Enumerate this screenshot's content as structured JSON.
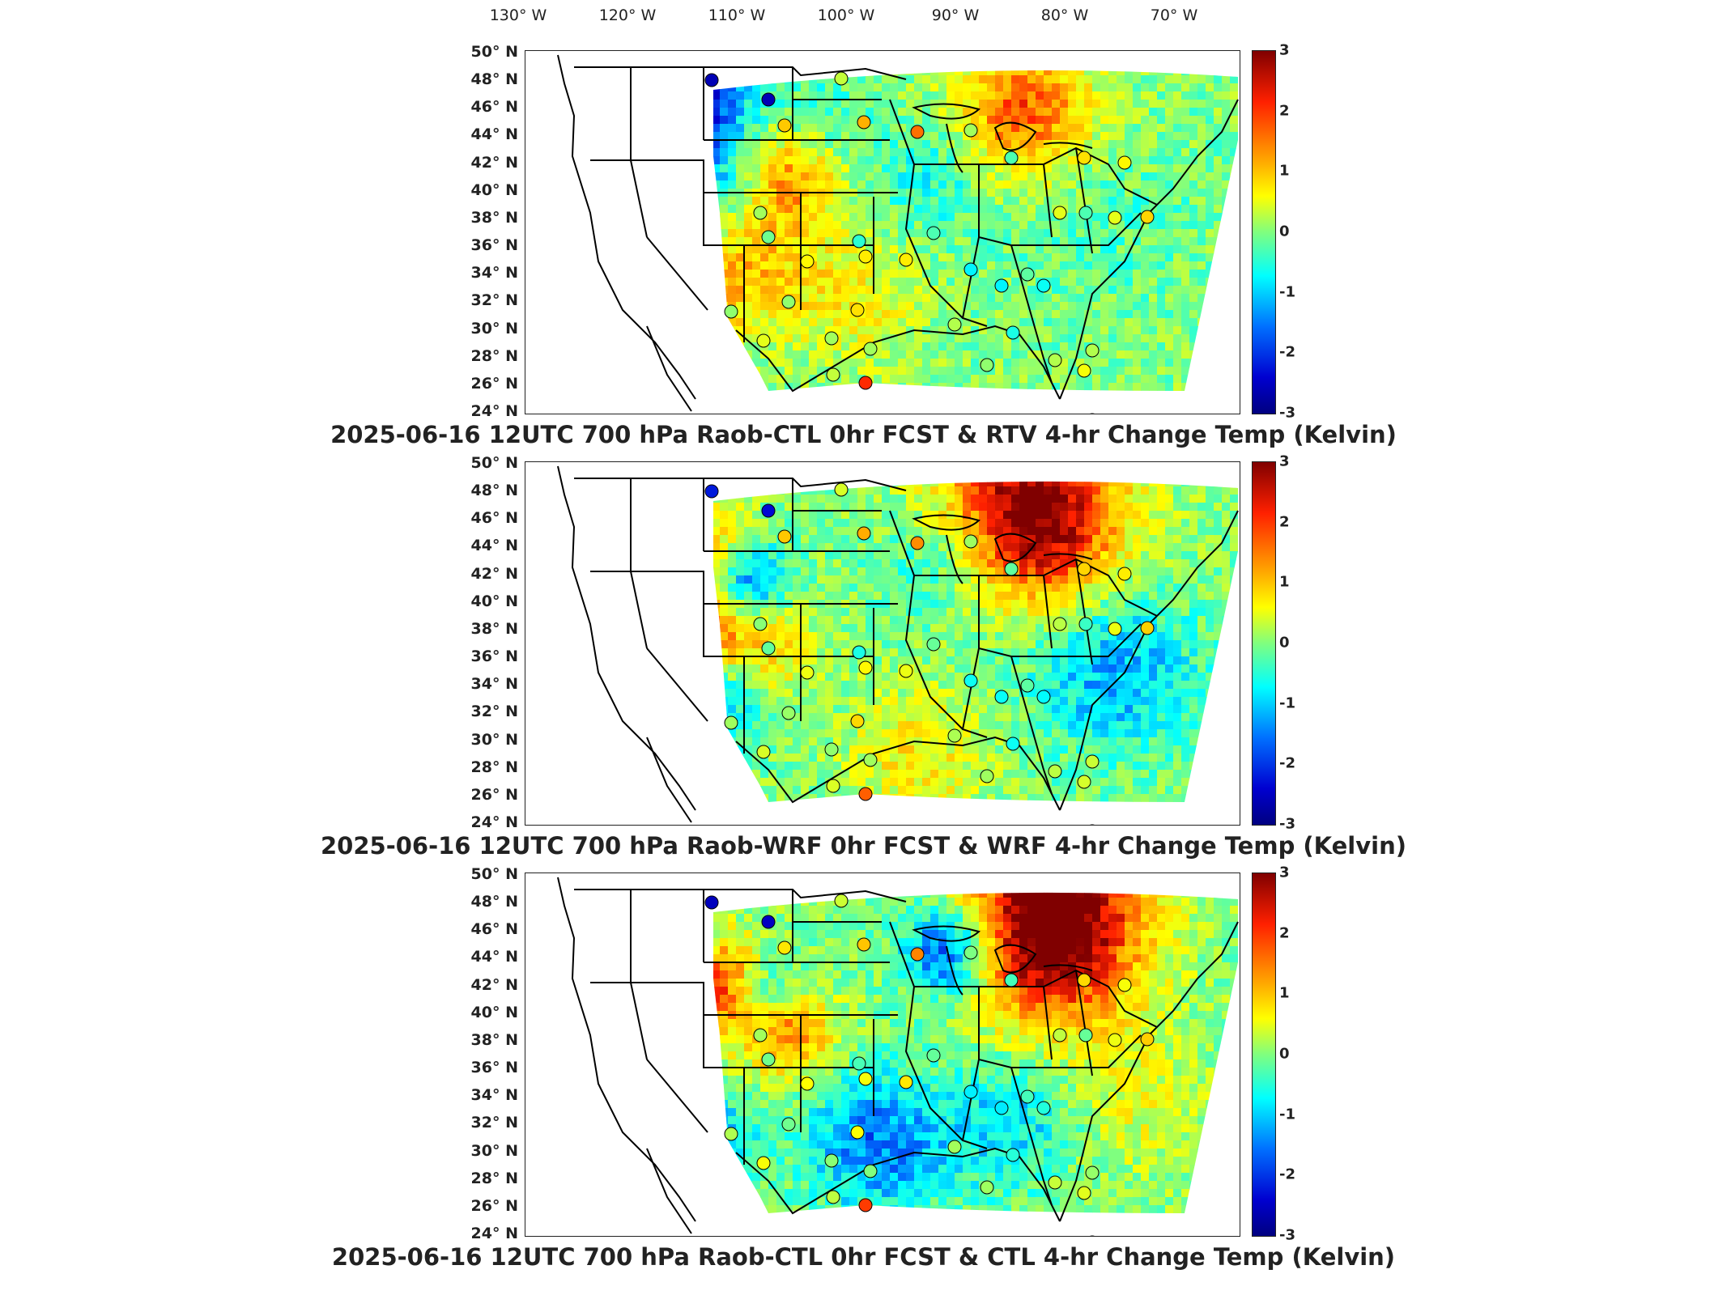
{
  "lon_labels": [
    "130° W",
    "120° W",
    "110° W",
    "100° W",
    "90° W",
    "80° W",
    "70° W"
  ],
  "lat_labels": [
    "50° N",
    "48° N",
    "46° N",
    "44° N",
    "42° N",
    "40° N",
    "38° N",
    "36° N",
    "34° N",
    "32° N",
    "30° N",
    "28° N",
    "26° N",
    "24° N"
  ],
  "colorbar": {
    "ticks": [
      "3",
      "2",
      "1",
      "0",
      "-1",
      "-2",
      "-3"
    ],
    "min": -3,
    "max": 3,
    "colors": [
      "#000080",
      "#0000d0",
      "#0070ff",
      "#00ffff",
      "#7fff7f",
      "#ffff00",
      "#ffa500",
      "#ff2000",
      "#800000"
    ]
  },
  "panels": [
    {
      "caption": "2025-06-16 12UTC 700 hPa Raob-CTL 0hr FCST & RTV 4-hr Change Temp (Kelvin)"
    },
    {
      "caption": "2025-06-16 12UTC 700 hPa Raob-WRF 0hr FCST & WRF 4-hr Change Temp (Kelvin)"
    },
    {
      "caption": "2025-06-16 12UTC 700 hPa Raob-CTL 0hr FCST & CTL 4-hr Change Temp (Kelvin)"
    }
  ]
}
